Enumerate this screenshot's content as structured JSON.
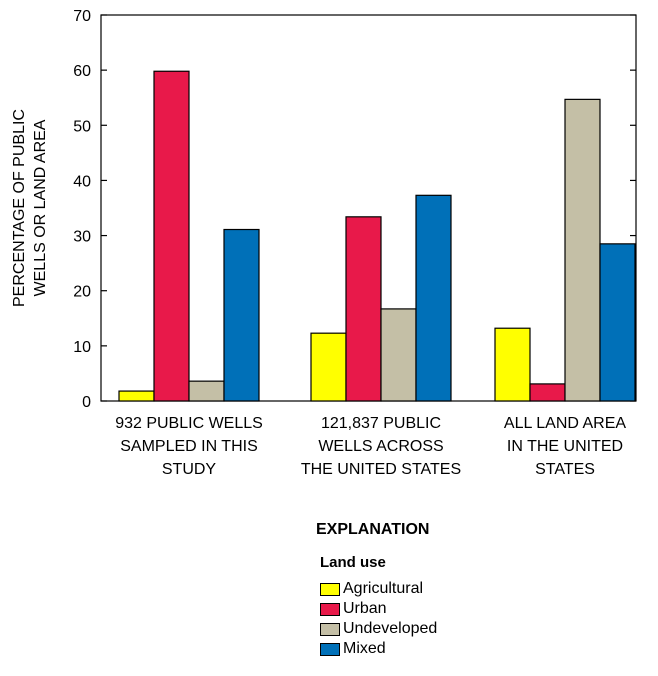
{
  "chart_data": {
    "type": "bar",
    "ylabel_lines": [
      "PERCENTAGE OF PUBLIC",
      "WELLS OR LAND AREA"
    ],
    "ylim": [
      0,
      70
    ],
    "yticks": [
      0,
      10,
      20,
      30,
      40,
      50,
      60,
      70
    ],
    "categories": [
      {
        "lines": [
          "932 PUBLIC WELLS",
          "SAMPLED IN THIS",
          "STUDY"
        ]
      },
      {
        "lines": [
          "121,837 PUBLIC",
          "WELLS ACROSS",
          "THE UNITED STATES"
        ]
      },
      {
        "lines": [
          "ALL LAND AREA",
          "IN THE UNITED",
          "STATES"
        ]
      }
    ],
    "series": [
      {
        "name": "Agricultural",
        "color": "#ffff00",
        "values": [
          1.8,
          12.3,
          13.2
        ]
      },
      {
        "name": "Urban",
        "color": "#e8194a",
        "values": [
          59.8,
          33.4,
          3.1
        ]
      },
      {
        "name": "Undeveloped",
        "color": "#c4bfa6",
        "values": [
          3.6,
          16.7,
          54.7
        ]
      },
      {
        "name": "Mixed",
        "color": "#0070b8",
        "values": [
          31.1,
          37.3,
          28.5
        ]
      }
    ],
    "grid": false,
    "legend_position": "bottom"
  },
  "legend": {
    "heading": "EXPLANATION",
    "subheading": "Land use",
    "items": [
      {
        "label": "Agricultural",
        "color": "#ffff00"
      },
      {
        "label": "Urban",
        "color": "#e8194a"
      },
      {
        "label": "Undeveloped",
        "color": "#c4bfa6"
      },
      {
        "label": "Mixed",
        "color": "#0070b8"
      }
    ]
  }
}
